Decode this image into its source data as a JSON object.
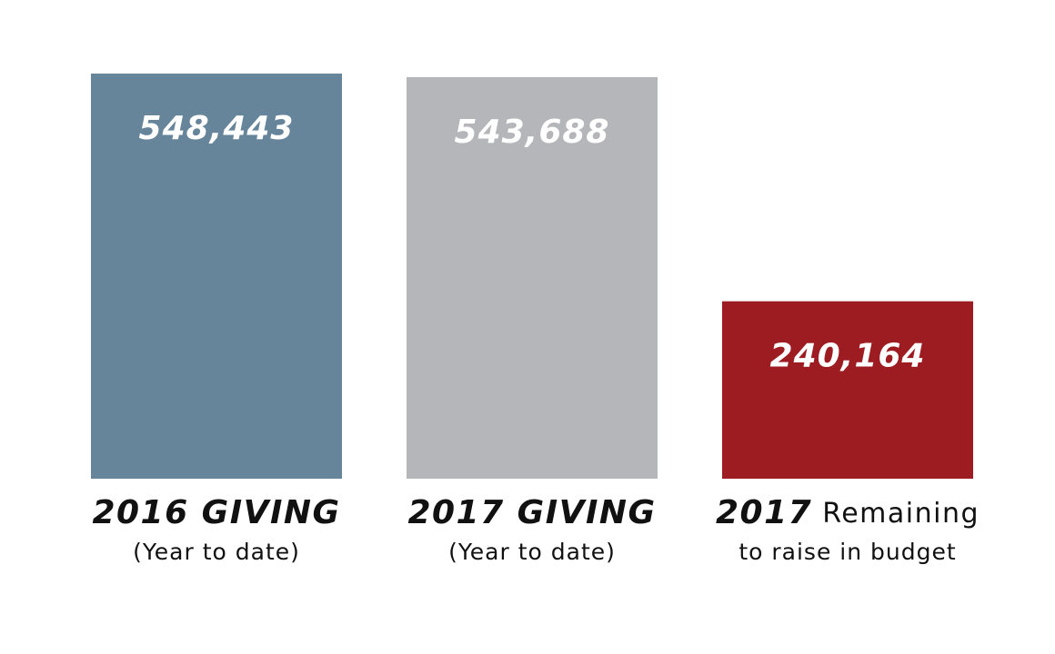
{
  "chart_data": {
    "type": "bar",
    "categories": [
      "2016 GIVING",
      "2017 GIVING",
      "2017 Remaining"
    ],
    "category_sublabels": [
      "(Year to date)",
      "(Year to date)",
      "to raise in budget"
    ],
    "values": [
      548443,
      543688,
      240164
    ],
    "value_labels": [
      "548,443",
      "543,688",
      "240,164"
    ],
    "colors": [
      "#66849a",
      "#b5b6ba",
      "#9d1c21"
    ]
  }
}
